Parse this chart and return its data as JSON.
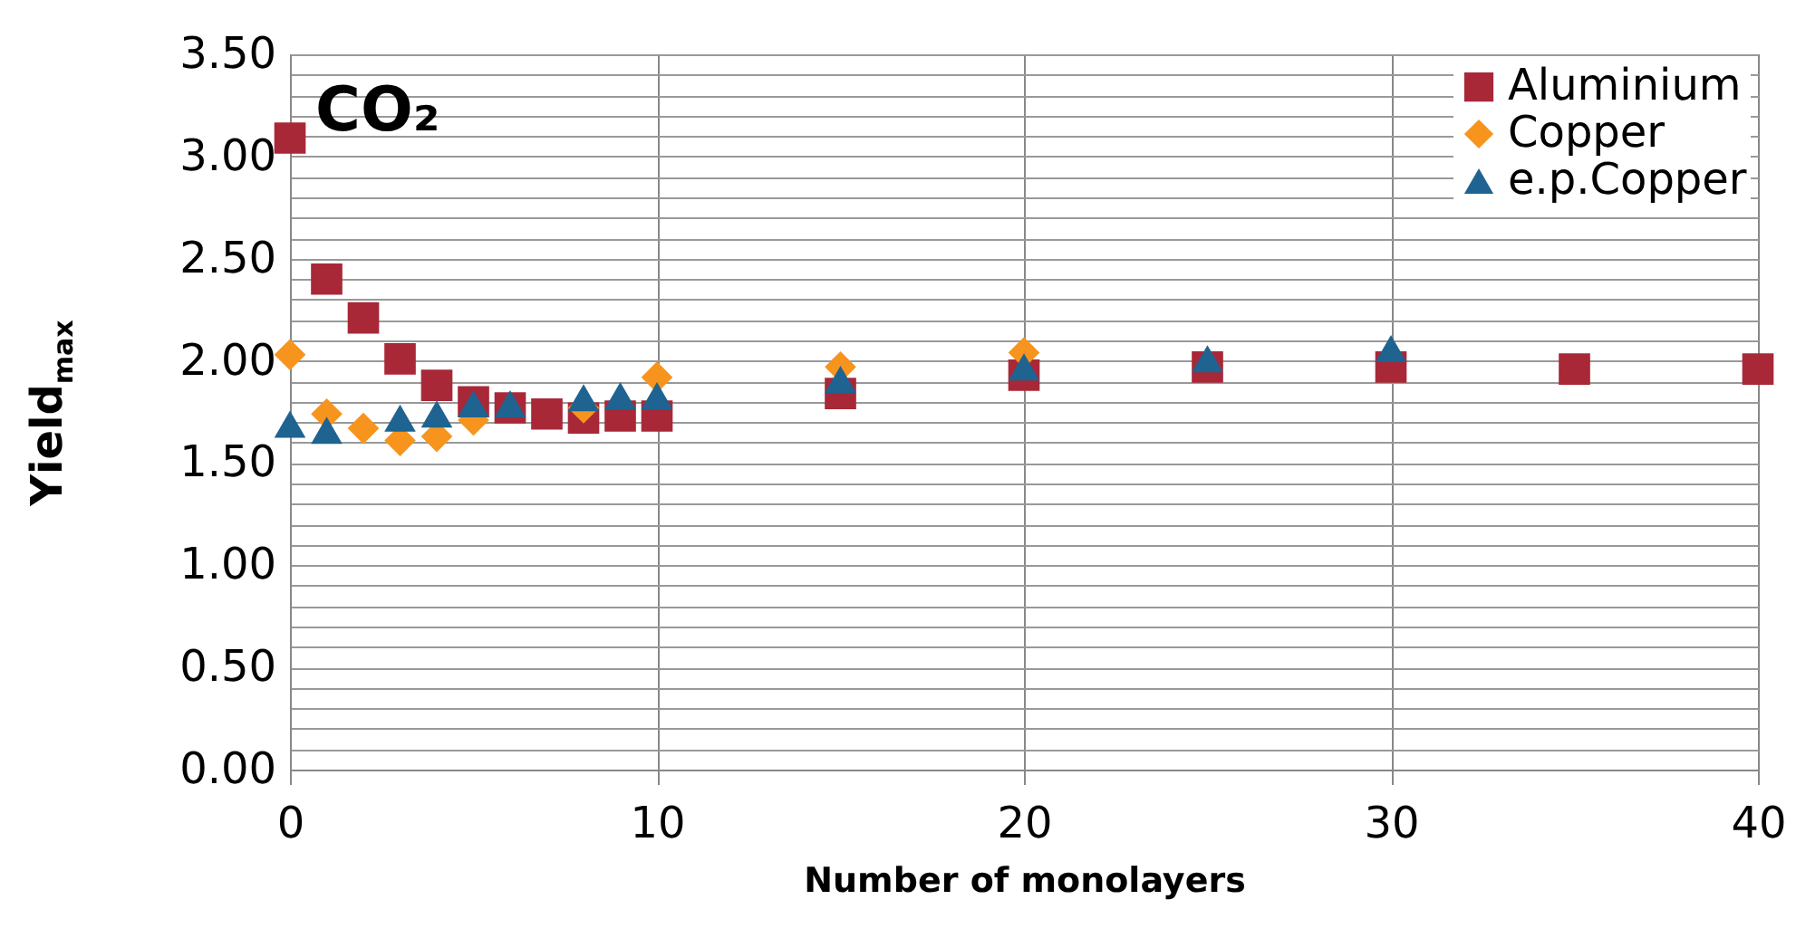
{
  "chart_data": {
    "type": "scatter",
    "xlabel": "Number of monolayers",
    "ylabel": "Yield$_{max}$",
    "annotations": [
      "CO₂"
    ],
    "xlim": [
      0,
      40
    ],
    "xticks": [
      0,
      10,
      20,
      30,
      40
    ],
    "ylim": [
      0,
      3.5
    ],
    "yticks": [
      {
        "value": 0,
        "label": "0.00"
      },
      {
        "value": 0.1,
        "label": null
      },
      {
        "value": 0.2,
        "label": null
      },
      {
        "value": 0.3,
        "label": null
      },
      {
        "value": 0.4,
        "label": null
      },
      {
        "value": 0.5,
        "label": "0.50"
      },
      {
        "value": 0.6,
        "label": null
      },
      {
        "value": 0.7,
        "label": null
      },
      {
        "value": 0.8,
        "label": null
      },
      {
        "value": 0.9,
        "label": null
      },
      {
        "value": 1,
        "label": "1.00"
      },
      {
        "value": 1.1,
        "label": null
      },
      {
        "value": 1.2,
        "label": null
      },
      {
        "value": 1.3,
        "label": null
      },
      {
        "value": 1.4,
        "label": null
      },
      {
        "value": 1.5,
        "label": "1.50"
      },
      {
        "value": 1.6,
        "label": null
      },
      {
        "value": 1.7,
        "label": null
      },
      {
        "value": 1.8,
        "label": null
      },
      {
        "value": 1.9,
        "label": null
      },
      {
        "value": 2,
        "label": "2.00"
      },
      {
        "value": 2.1,
        "label": null
      },
      {
        "value": 2.2,
        "label": null
      },
      {
        "value": 2.3,
        "label": null
      },
      {
        "value": 2.4,
        "label": null
      },
      {
        "value": 2.5,
        "label": "2.50"
      },
      {
        "value": 2.6,
        "label": null
      },
      {
        "value": 2.7,
        "label": null
      },
      {
        "value": 2.8,
        "label": null
      },
      {
        "value": 2.9,
        "label": null
      },
      {
        "value": 3,
        "label": "3.00"
      },
      {
        "value": 3.1,
        "label": null
      },
      {
        "value": 3.2,
        "label": null
      },
      {
        "value": 3.3,
        "label": null
      },
      {
        "value": 3.4,
        "label": null
      },
      {
        "value": 3.5,
        "label": "3.50"
      }
    ],
    "grid": true,
    "legend": "top right",
    "series": [
      {
        "name": "Aluminium",
        "color": "#a82838",
        "marker": "square",
        "x": [
          0,
          1,
          2,
          3,
          4,
          5,
          6,
          7,
          8,
          9,
          10,
          15,
          20,
          25,
          30,
          35,
          40
        ],
        "values": [
          3.09,
          2.4,
          2.21,
          2.01,
          1.88,
          1.8,
          1.77,
          1.74,
          1.72,
          1.73,
          1.73,
          1.84,
          1.93,
          1.97,
          1.97,
          1.96,
          1.96
        ]
      },
      {
        "name": "Copper",
        "color": "#f7941d",
        "marker": "diamond",
        "x": [
          0,
          1,
          2,
          3,
          4,
          5,
          8,
          10,
          15,
          20
        ],
        "values": [
          2.03,
          1.74,
          1.67,
          1.61,
          1.63,
          1.71,
          1.77,
          1.92,
          1.97,
          2.04
        ]
      },
      {
        "name": "e.p.Copper",
        "color": "#1f6391",
        "marker": "triangle",
        "x": [
          0,
          1,
          3,
          4,
          5,
          6,
          8,
          9,
          10,
          15,
          20,
          25,
          30
        ],
        "values": [
          1.69,
          1.66,
          1.72,
          1.74,
          1.79,
          1.79,
          1.82,
          1.83,
          1.83,
          1.91,
          1.97,
          2.01,
          2.06
        ]
      }
    ]
  }
}
